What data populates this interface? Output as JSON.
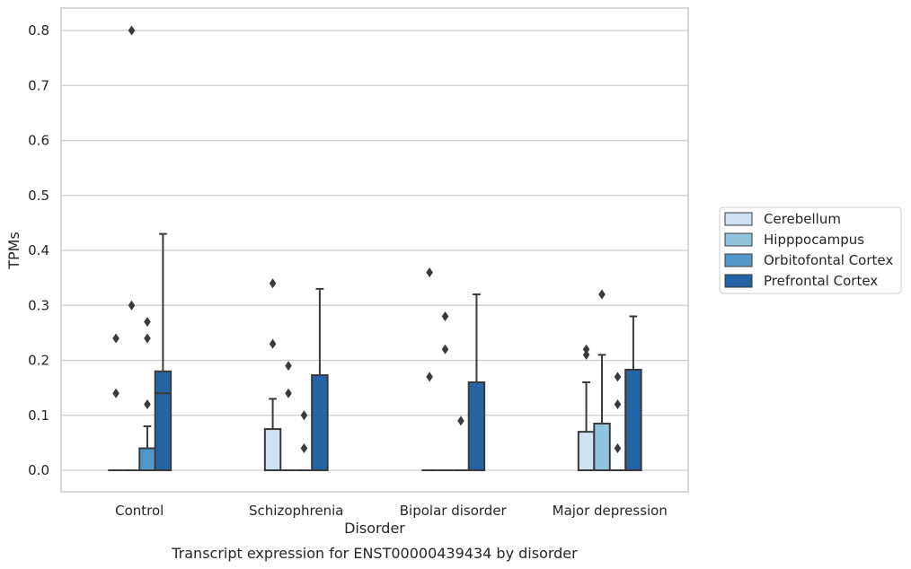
{
  "chart_data": {
    "type": "boxplot",
    "xlabel": "Disorder",
    "ylabel": "TPMs",
    "caption": "Transcript expression for ENST00000439434 by disorder",
    "ylim": [
      -0.04,
      0.84
    ],
    "yticks": [
      "0.0",
      "0.1",
      "0.2",
      "0.3",
      "0.4",
      "0.5",
      "0.6",
      "0.7",
      "0.8"
    ],
    "grid": "horizontal",
    "legend_position": "right",
    "categories": [
      "Control",
      "Schizophrenia",
      "Bipolar disorder",
      "Major depression"
    ],
    "series": [
      {
        "name": "Cerebellum",
        "color": "#cfe1f2",
        "boxes": [
          {
            "q1": 0,
            "median": 0,
            "q3": 0,
            "whisker_low": 0,
            "whisker_high": 0,
            "outliers": [
              0.14,
              0.24
            ]
          },
          {
            "q1": 0,
            "median": 0,
            "q3": 0.075,
            "whisker_low": 0,
            "whisker_high": 0.13,
            "outliers": [
              0.23,
              0.34
            ]
          },
          {
            "q1": 0,
            "median": 0,
            "q3": 0,
            "whisker_low": 0,
            "whisker_high": 0,
            "outliers": [
              0.17,
              0.36
            ]
          },
          {
            "q1": 0,
            "median": 0,
            "q3": 0.07,
            "whisker_low": 0,
            "whisker_high": 0.16,
            "outliers": [
              0.21,
              0.22
            ]
          }
        ]
      },
      {
        "name": "Hipppocampus",
        "color": "#93c4de",
        "boxes": [
          {
            "q1": 0,
            "median": 0,
            "q3": 0,
            "whisker_low": 0,
            "whisker_high": 0,
            "outliers": [
              0.3,
              0.8
            ]
          },
          {
            "q1": 0,
            "median": 0,
            "q3": 0,
            "whisker_low": 0,
            "whisker_high": 0,
            "outliers": [
              0.14,
              0.19
            ]
          },
          {
            "q1": 0,
            "median": 0,
            "q3": 0,
            "whisker_low": 0,
            "whisker_high": 0,
            "outliers": [
              0.22,
              0.28
            ]
          },
          {
            "q1": 0,
            "median": 0,
            "q3": 0.085,
            "whisker_low": 0,
            "whisker_high": 0.21,
            "outliers": [
              0.32
            ]
          }
        ]
      },
      {
        "name": "Orbitofontal Cortex",
        "color": "#5197c8",
        "boxes": [
          {
            "q1": 0,
            "median": 0,
            "q3": 0.04,
            "whisker_low": 0,
            "whisker_high": 0.08,
            "outliers": [
              0.12,
              0.24,
              0.27
            ]
          },
          {
            "q1": 0,
            "median": 0,
            "q3": 0,
            "whisker_low": 0,
            "whisker_high": 0,
            "outliers": [
              0.04,
              0.1
            ]
          },
          {
            "q1": 0,
            "median": 0,
            "q3": 0,
            "whisker_low": 0,
            "whisker_high": 0,
            "outliers": [
              0.09
            ]
          },
          {
            "q1": 0,
            "median": 0,
            "q3": 0,
            "whisker_low": 0,
            "whisker_high": 0,
            "outliers": [
              0.04,
              0.12,
              0.17
            ]
          }
        ]
      },
      {
        "name": "Prefrontal Cortex",
        "color": "#2563a3",
        "boxes": [
          {
            "q1": 0,
            "median": 0.14,
            "q3": 0.18,
            "whisker_low": 0,
            "whisker_high": 0.43,
            "outliers": []
          },
          {
            "q1": 0,
            "median": 0,
            "q3": 0.173,
            "whisker_low": 0,
            "whisker_high": 0.33,
            "outliers": []
          },
          {
            "q1": 0,
            "median": 0,
            "q3": 0.16,
            "whisker_low": 0,
            "whisker_high": 0.32,
            "outliers": []
          },
          {
            "q1": 0,
            "median": 0,
            "q3": 0.183,
            "whisker_low": 0,
            "whisker_high": 0.28,
            "outliers": []
          }
        ]
      }
    ]
  }
}
